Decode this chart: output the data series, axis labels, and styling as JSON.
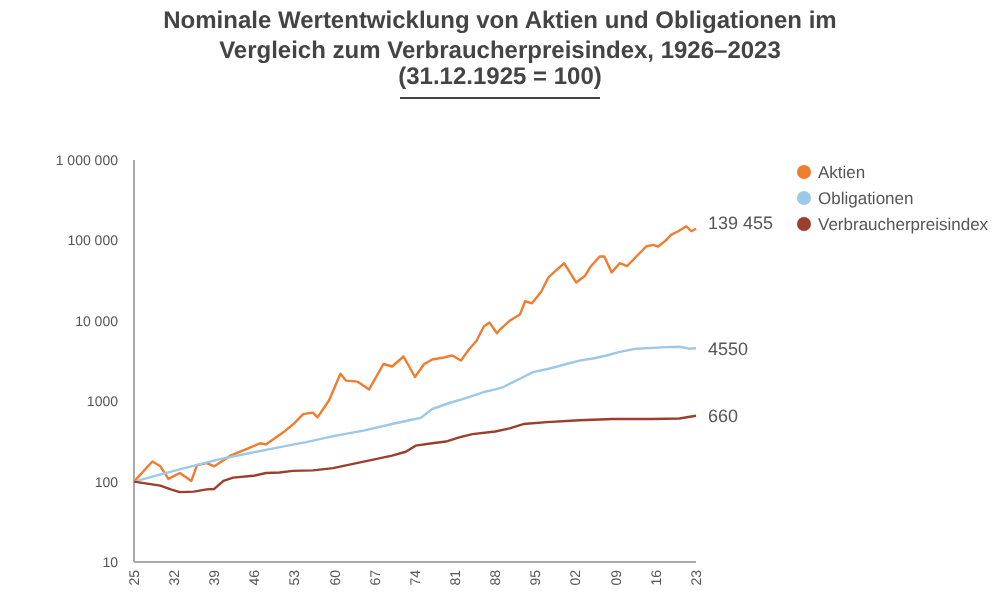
{
  "chart_data": {
    "type": "line",
    "title": "Nominale Wertentwicklung von Aktien und Obligationen im Vergleich zum Verbraucherpreisindex, 1926–2023",
    "subtitle": "(31.12.1925 = 100)",
    "log": true,
    "legend": "top right",
    "marker": "none",
    "line_style": "solid",
    "xlim": [
      1925,
      2023
    ],
    "xticks": [
      {
        "value": 1925,
        "label": "25"
      },
      {
        "value": 1932,
        "label": "32"
      },
      {
        "value": 1939,
        "label": "39"
      },
      {
        "value": 1946,
        "label": "46"
      },
      {
        "value": 1953,
        "label": "53"
      },
      {
        "value": 1960,
        "label": "60"
      },
      {
        "value": 1967,
        "label": "67"
      },
      {
        "value": 1974,
        "label": "74"
      },
      {
        "value": 1981,
        "label": "81"
      },
      {
        "value": 1988,
        "label": "88"
      },
      {
        "value": 1995,
        "label": "95"
      },
      {
        "value": 2002,
        "label": "02"
      },
      {
        "value": 2009,
        "label": "09"
      },
      {
        "value": 2016,
        "label": "16"
      },
      {
        "value": 2023,
        "label": "23"
      }
    ],
    "ylim": [
      10,
      1000000
    ],
    "yticks": [
      10,
      100,
      1000,
      {
        "value": 10000,
        "label": "10 000"
      },
      {
        "value": 100000,
        "label": "100 000"
      },
      {
        "value": 1000000,
        "label": "1 000 000"
      }
    ],
    "series": [
      {
        "name": "Aktien",
        "color": "#f07c2d",
        "x": [
          1925,
          1928.2,
          1929.6,
          1931,
          1933,
          1935,
          1936,
          1937.7,
          1939,
          1940.4,
          1941.8,
          1944.7,
          1947,
          1948,
          1951.4,
          1952.8,
          1954.5,
          1956.2,
          1957,
          1959,
          1961,
          1962,
          1964,
          1966,
          1968.5,
          1970,
          1972,
          1974,
          1975.6,
          1977,
          1979,
          1980.5,
          1982,
          1983.5,
          1984.7,
          1986,
          1987,
          1988.3,
          1989,
          1990.5,
          1992.3,
          1993.2,
          1994.4,
          1996,
          1997.3,
          1998.7,
          2000,
          2002.1,
          2003.6,
          2004.6,
          2006.2,
          2007,
          2008.3,
          2009.7,
          2011,
          2012.6,
          2014.3,
          2015.5,
          2016.4,
          2017.6,
          2018.7,
          2019.9,
          2021.3,
          2022.2,
          2023
        ],
        "values": [
          100,
          178,
          155,
          108,
          128,
          102,
          160,
          170,
          155,
          180,
          210,
          255,
          300,
          290,
          430,
          520,
          690,
          720,
          630,
          1020,
          2200,
          1800,
          1750,
          1400,
          2900,
          2700,
          3600,
          2000,
          2900,
          3300,
          3500,
          3700,
          3200,
          4500,
          5600,
          8500,
          9500,
          7000,
          8000,
          10000,
          12000,
          17500,
          16500,
          23000,
          35000,
          43000,
          52000,
          30000,
          36000,
          47000,
          63000,
          63000,
          40000,
          52000,
          48000,
          63000,
          84000,
          88000,
          84000,
          98000,
          118000,
          130000,
          150000,
          130000,
          139455
        ],
        "value_labels": [
          null,
          null,
          null,
          null,
          null,
          null,
          null,
          null,
          null,
          null,
          null,
          null,
          null,
          null,
          null,
          null,
          null,
          null,
          null,
          null,
          null,
          null,
          null,
          null,
          null,
          null,
          null,
          null,
          null,
          null,
          null,
          null,
          null,
          null,
          null,
          null,
          null,
          null,
          null,
          null,
          null,
          null,
          null,
          null,
          null,
          null,
          null,
          null,
          null,
          null,
          null,
          null,
          null,
          null,
          null,
          null,
          null,
          null,
          null,
          null,
          null,
          null,
          null,
          null,
          "139 455"
        ]
      },
      {
        "name": "Obligationen",
        "color": "#9dc8e8",
        "x": [
          1925,
          1930,
          1935,
          1940,
          1945,
          1950,
          1955,
          1960,
          1965,
          1970,
          1973,
          1975,
          1977,
          1980,
          1983,
          1986,
          1988,
          1989.4,
          1992.9,
          1994.6,
          1997.5,
          2000.4,
          2002.7,
          2005,
          2007.4,
          2009.7,
          2012.6,
          2015.5,
          2017.8,
          2020.1,
          2021.8,
          2023
        ],
        "values": [
          100,
          125,
          155,
          190,
          225,
          265,
          310,
          370,
          430,
          520,
          580,
          620,
          800,
          950,
          1100,
          1300,
          1400,
          1500,
          2000,
          2300,
          2550,
          2900,
          3200,
          3400,
          3700,
          4100,
          4500,
          4600,
          4700,
          4750,
          4500,
          4550
        ],
        "value_labels": [
          null,
          null,
          null,
          null,
          null,
          null,
          null,
          null,
          null,
          null,
          null,
          null,
          null,
          null,
          null,
          null,
          null,
          null,
          null,
          null,
          null,
          null,
          null,
          null,
          null,
          null,
          null,
          null,
          null,
          null,
          null,
          "4550"
        ]
      },
      {
        "name": "Verbraucherpreisindex",
        "color": "#9a3f2c",
        "x": [
          1925,
          1929.6,
          1931.4,
          1933,
          1935.4,
          1937.7,
          1939,
          1940.6,
          1942.3,
          1945.8,
          1948,
          1950.4,
          1952.7,
          1956.2,
          1959.7,
          1963,
          1966.5,
          1970,
          1972.4,
          1974.1,
          1977,
          1979.4,
          1981.7,
          1984,
          1988,
          1990.5,
          1992.9,
          1997,
          2002.7,
          2008.5,
          2015.5,
          2020.1,
          2023
        ],
        "values": [
          100,
          89,
          80,
          74,
          75,
          80,
          81,
          102,
          112,
          118,
          128,
          130,
          136,
          138,
          147,
          165,
          186,
          210,
          235,
          280,
          300,
          315,
          355,
          390,
          420,
          460,
          520,
          550,
          580,
          600,
          600,
          610,
          660
        ],
        "value_labels": [
          null,
          null,
          null,
          null,
          null,
          null,
          null,
          null,
          null,
          null,
          null,
          null,
          null,
          null,
          null,
          null,
          null,
          null,
          null,
          null,
          null,
          null,
          null,
          null,
          null,
          null,
          null,
          null,
          null,
          null,
          null,
          null,
          "660"
        ]
      }
    ]
  }
}
